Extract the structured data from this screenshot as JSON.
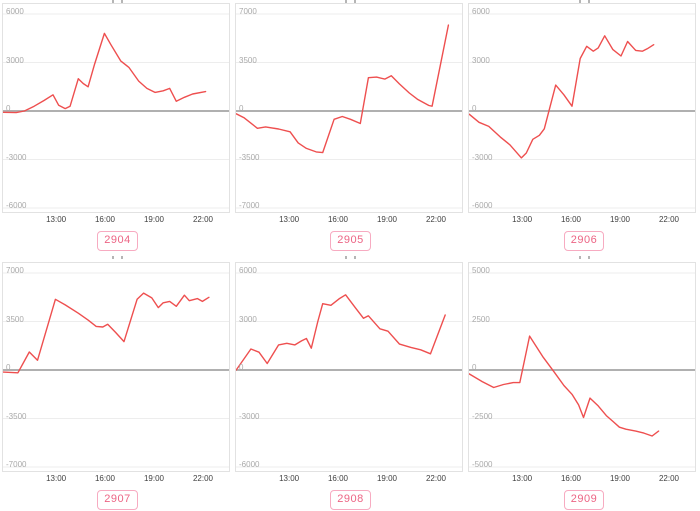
{
  "colors": {
    "background": "#ffffff",
    "line": "#ee4f4f",
    "grid_line": "#ededed",
    "zero_line": "#b0b0b0",
    "panel_border": "#e2e2e2",
    "y_label": "#a9a9a9",
    "x_label": "#3f3f3f",
    "button_text": "#ec6484",
    "button_border": "#f7abc1",
    "clipped_title_dots": "#b5b5b5"
  },
  "chart_data": {
    "type": "line",
    "layout": {
      "grid": "2 rows x 3 cols",
      "horizontal_gridlines": true,
      "vertical_gridlines": false,
      "legend": "none"
    },
    "x_axis": {
      "tick_labels": [
        "13:00",
        "16:00",
        "19:00",
        "22:00"
      ],
      "tick_hours": [
        13,
        16,
        19,
        22
      ],
      "hours_domain": [
        9.69,
        23.53
      ]
    },
    "charts": [
      {
        "button_label": "2904",
        "y_tick_labels": [
          "6000",
          "3000",
          "0",
          "-3000",
          "-6000"
        ],
        "y_tick_step": 3000,
        "points": [
          [
            9.7,
            -80
          ],
          [
            10.5,
            -100
          ],
          [
            11.0,
            0
          ],
          [
            11.6,
            300
          ],
          [
            12.2,
            650
          ],
          [
            12.75,
            1000
          ],
          [
            13.1,
            350
          ],
          [
            13.5,
            150
          ],
          [
            13.8,
            300
          ],
          [
            14.3,
            2000
          ],
          [
            14.6,
            1700
          ],
          [
            14.9,
            1500
          ],
          [
            15.3,
            2900
          ],
          [
            15.9,
            4800
          ],
          [
            16.3,
            4100
          ],
          [
            16.9,
            3100
          ],
          [
            17.4,
            2700
          ],
          [
            18.0,
            1850
          ],
          [
            18.5,
            1400
          ],
          [
            19.0,
            1150
          ],
          [
            19.5,
            1250
          ],
          [
            19.9,
            1400
          ],
          [
            20.3,
            600
          ],
          [
            20.8,
            850
          ],
          [
            21.3,
            1050
          ],
          [
            22.1,
            1200
          ]
        ]
      },
      {
        "button_label": "2905",
        "y_tick_labels": [
          "7000",
          "3500",
          "0",
          "-3500",
          "-7000"
        ],
        "y_tick_step": 3500,
        "points": [
          [
            9.7,
            -200
          ],
          [
            10.2,
            -500
          ],
          [
            11.0,
            -1250
          ],
          [
            11.5,
            -1150
          ],
          [
            12.3,
            -1300
          ],
          [
            13.0,
            -1500
          ],
          [
            13.5,
            -2300
          ],
          [
            14.0,
            -2700
          ],
          [
            14.6,
            -2950
          ],
          [
            15.0,
            -3000
          ],
          [
            15.7,
            -600
          ],
          [
            16.2,
            -400
          ],
          [
            16.7,
            -600
          ],
          [
            17.3,
            -900
          ],
          [
            17.8,
            2400
          ],
          [
            18.3,
            2450
          ],
          [
            18.8,
            2300
          ],
          [
            19.2,
            2550
          ],
          [
            19.7,
            1950
          ],
          [
            20.3,
            1300
          ],
          [
            20.8,
            850
          ],
          [
            21.5,
            400
          ],
          [
            21.7,
            350
          ],
          [
            22.7,
            6200
          ]
        ]
      },
      {
        "button_label": "2906",
        "y_tick_labels": [
          "6000",
          "3000",
          "0",
          "-3000",
          "-6000"
        ],
        "y_tick_step": 3000,
        "points": [
          [
            9.7,
            -200
          ],
          [
            10.3,
            -700
          ],
          [
            10.9,
            -950
          ],
          [
            11.6,
            -1600
          ],
          [
            12.2,
            -2100
          ],
          [
            12.9,
            -2900
          ],
          [
            13.2,
            -2600
          ],
          [
            13.6,
            -1750
          ],
          [
            14.0,
            -1500
          ],
          [
            14.3,
            -1100
          ],
          [
            15.0,
            1600
          ],
          [
            15.5,
            1000
          ],
          [
            16.0,
            300
          ],
          [
            16.5,
            3250
          ],
          [
            16.9,
            4000
          ],
          [
            17.3,
            3700
          ],
          [
            17.6,
            3900
          ],
          [
            18.0,
            4650
          ],
          [
            18.5,
            3800
          ],
          [
            19.0,
            3400
          ],
          [
            19.4,
            4300
          ],
          [
            19.9,
            3750
          ],
          [
            20.3,
            3700
          ],
          [
            20.6,
            3850
          ],
          [
            21.0,
            4100
          ]
        ]
      },
      {
        "button_label": "2907",
        "y_tick_labels": [
          "7000",
          "3500",
          "0",
          "-3500",
          "-7000"
        ],
        "y_tick_step": 3500,
        "points": [
          [
            9.7,
            -150
          ],
          [
            10.6,
            -200
          ],
          [
            11.3,
            1300
          ],
          [
            11.8,
            700
          ],
          [
            12.9,
            5100
          ],
          [
            13.5,
            4700
          ],
          [
            14.3,
            4100
          ],
          [
            14.9,
            3600
          ],
          [
            15.4,
            3150
          ],
          [
            15.8,
            3100
          ],
          [
            16.1,
            3300
          ],
          [
            16.6,
            2700
          ],
          [
            17.1,
            2050
          ],
          [
            17.9,
            5100
          ],
          [
            18.3,
            5550
          ],
          [
            18.8,
            5200
          ],
          [
            19.2,
            4500
          ],
          [
            19.5,
            4850
          ],
          [
            19.9,
            4950
          ],
          [
            20.3,
            4600
          ],
          [
            20.8,
            5400
          ],
          [
            21.1,
            5000
          ],
          [
            21.6,
            5150
          ],
          [
            21.9,
            4950
          ],
          [
            22.3,
            5250
          ]
        ]
      },
      {
        "button_label": "2908",
        "y_tick_labels": [
          "6000",
          "3000",
          "0",
          "-3000",
          "-6000"
        ],
        "y_tick_step": 3000,
        "points": [
          [
            9.7,
            0
          ],
          [
            10.6,
            1300
          ],
          [
            11.1,
            1100
          ],
          [
            11.6,
            400
          ],
          [
            12.3,
            1550
          ],
          [
            12.8,
            1650
          ],
          [
            13.3,
            1550
          ],
          [
            13.7,
            1800
          ],
          [
            14.0,
            1950
          ],
          [
            14.3,
            1350
          ],
          [
            14.7,
            3000
          ],
          [
            15.0,
            4100
          ],
          [
            15.5,
            4000
          ],
          [
            16.0,
            4400
          ],
          [
            16.4,
            4650
          ],
          [
            17.0,
            3850
          ],
          [
            17.5,
            3200
          ],
          [
            17.8,
            3350
          ],
          [
            18.5,
            2550
          ],
          [
            19.0,
            2400
          ],
          [
            19.7,
            1600
          ],
          [
            20.4,
            1400
          ],
          [
            21.0,
            1250
          ],
          [
            21.6,
            1000
          ],
          [
            22.5,
            3400
          ]
        ]
      },
      {
        "button_label": "2909",
        "y_tick_labels": [
          "5000",
          "2500",
          "0",
          "-2500",
          "-5000"
        ],
        "y_tick_step": 2500,
        "points": [
          [
            9.7,
            -200
          ],
          [
            10.5,
            -600
          ],
          [
            11.2,
            -900
          ],
          [
            11.8,
            -750
          ],
          [
            12.4,
            -650
          ],
          [
            12.8,
            -650
          ],
          [
            13.4,
            1750
          ],
          [
            14.2,
            700
          ],
          [
            14.9,
            -100
          ],
          [
            15.5,
            -800
          ],
          [
            16.0,
            -1250
          ],
          [
            16.4,
            -1800
          ],
          [
            16.7,
            -2450
          ],
          [
            17.1,
            -1450
          ],
          [
            17.6,
            -1850
          ],
          [
            18.1,
            -2350
          ],
          [
            18.5,
            -2650
          ],
          [
            18.9,
            -2950
          ],
          [
            19.3,
            -3050
          ],
          [
            19.9,
            -3150
          ],
          [
            20.4,
            -3250
          ],
          [
            20.9,
            -3400
          ],
          [
            21.3,
            -3150
          ]
        ]
      }
    ]
  }
}
